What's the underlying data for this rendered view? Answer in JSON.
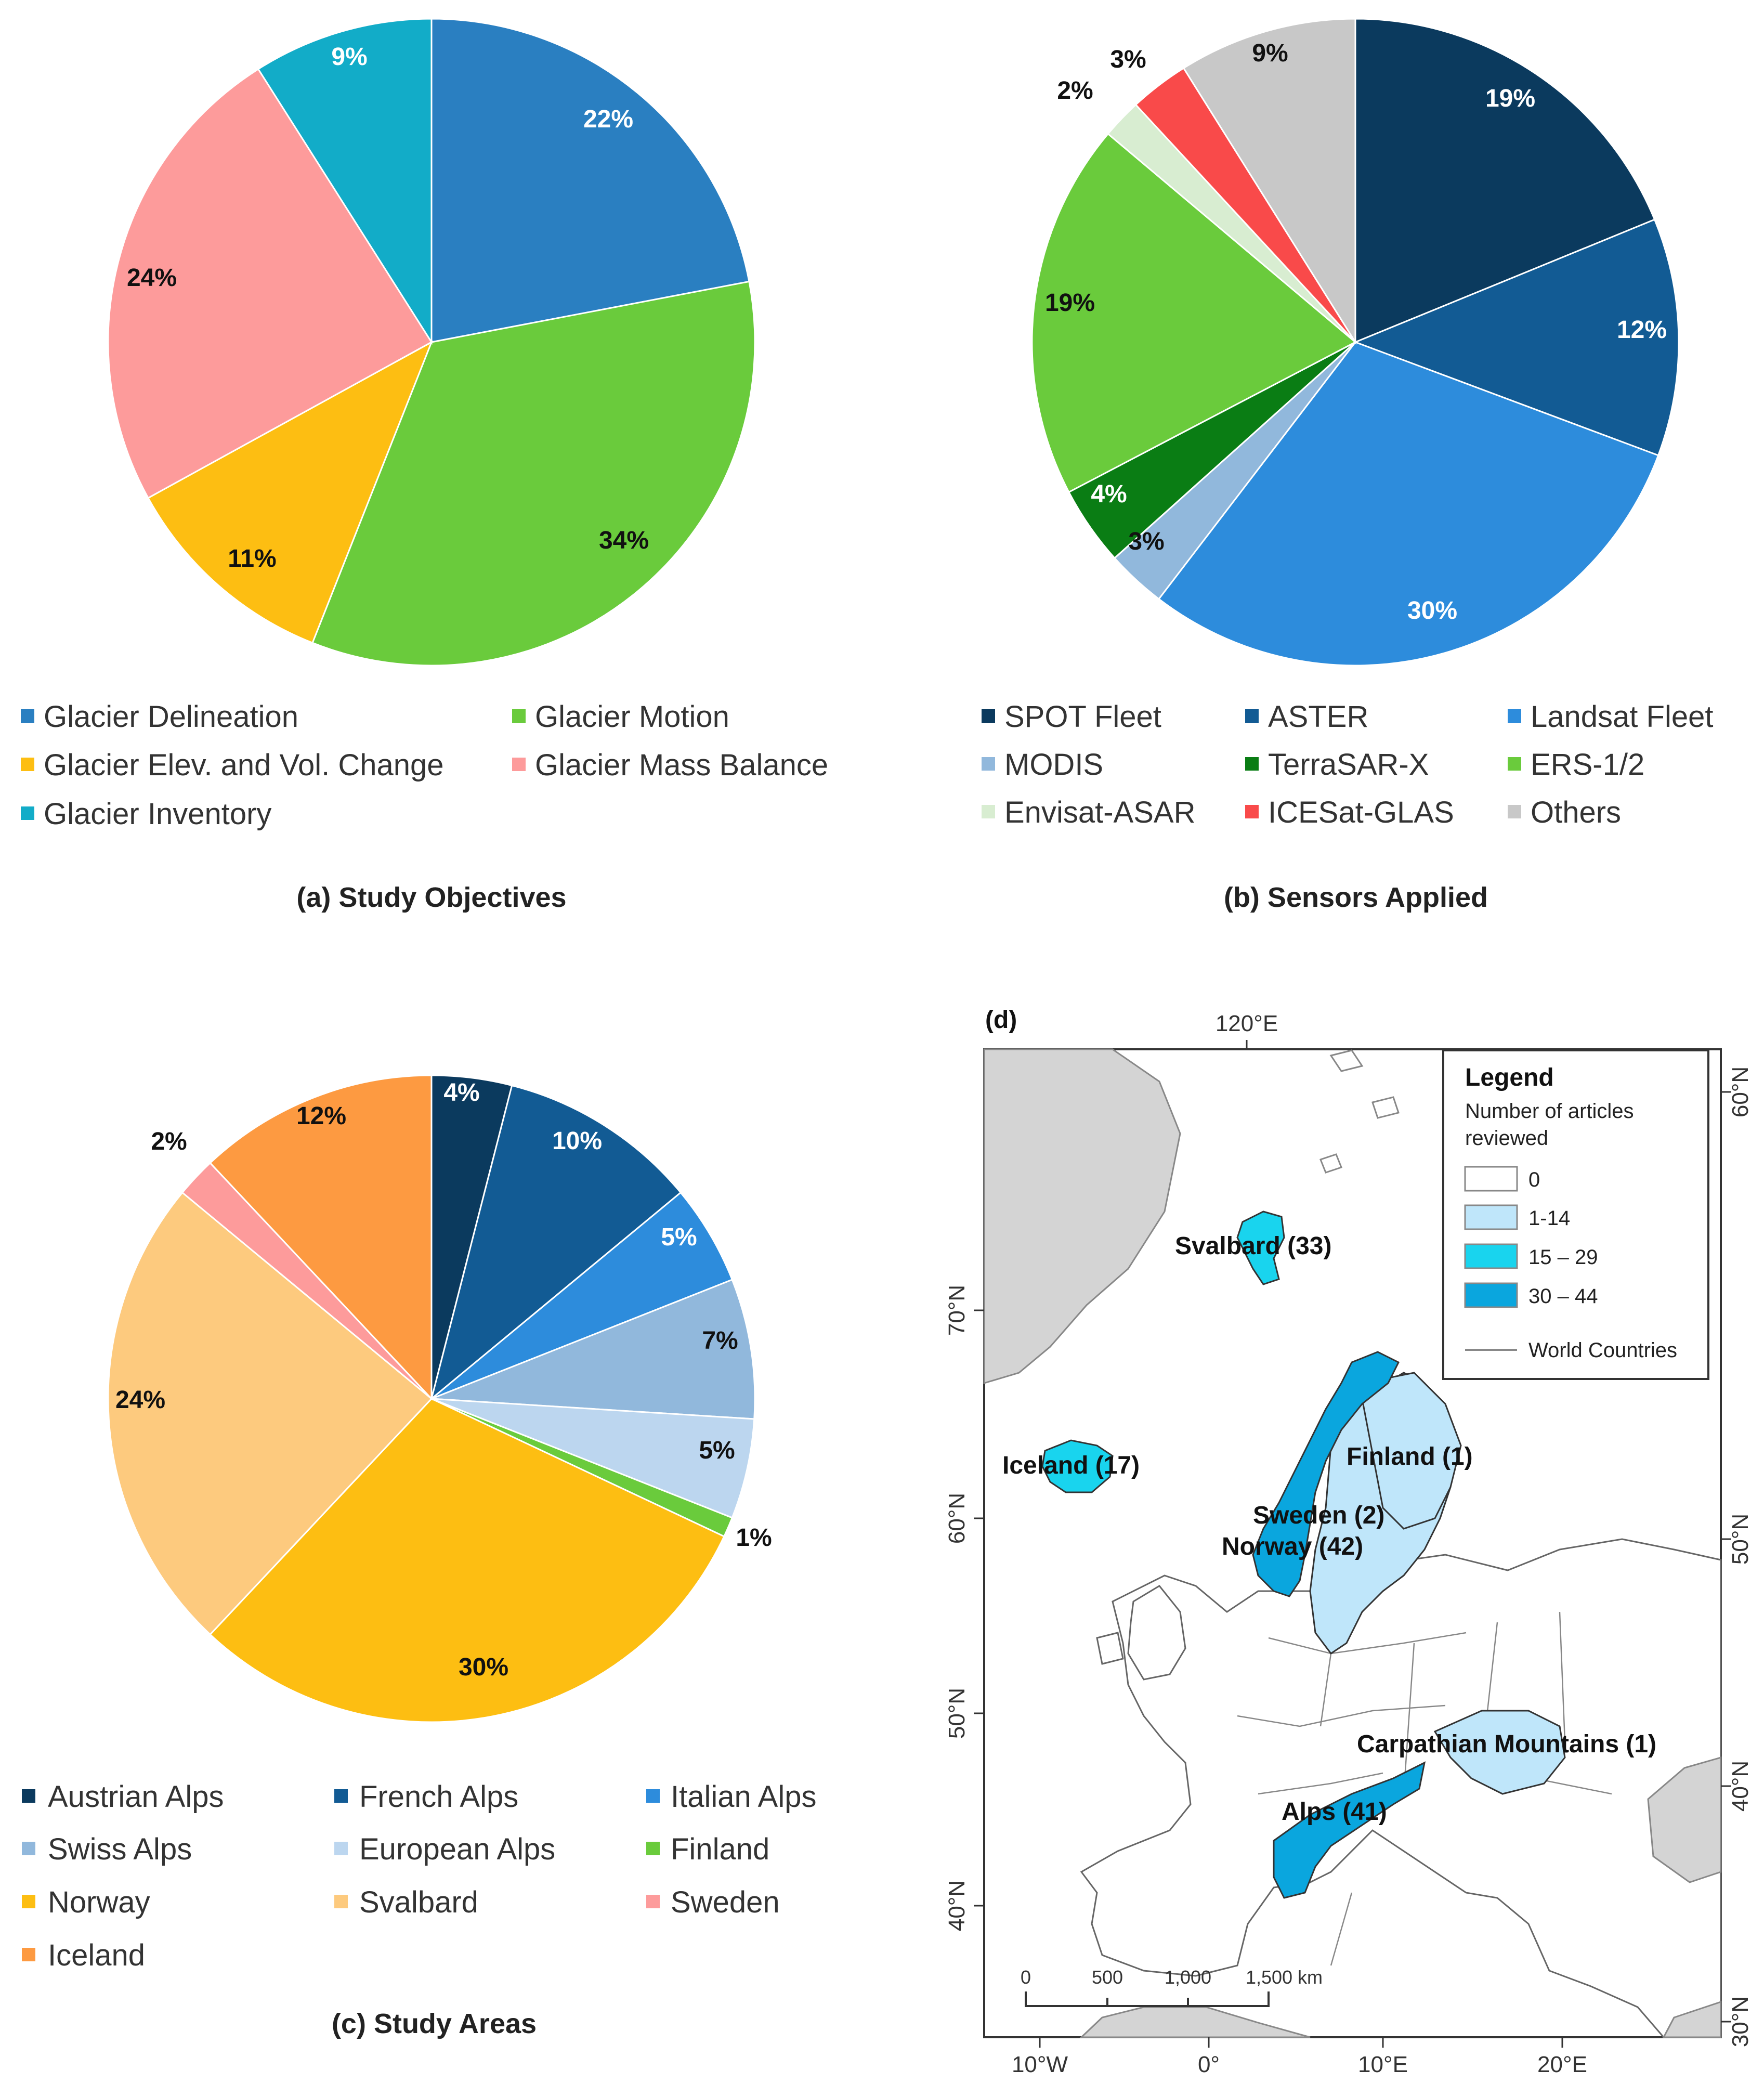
{
  "chart_data": [
    {
      "type": "pie",
      "title": "(a) Study Objectives",
      "categories": [
        "Glacier Delineation",
        "Glacier Motion",
        "Glacier Elev. and Vol. Change",
        "Glacier Mass Balance",
        "Glacier Inventory"
      ],
      "values": [
        22,
        34,
        11,
        24,
        9
      ],
      "labels": [
        "22%",
        "34%",
        "11%",
        "24%",
        "9%"
      ],
      "colors": [
        "#2a7fc1",
        "#6acb3c",
        "#fdbe12",
        "#fd9b9b",
        "#12acc8"
      ],
      "label_colors": [
        "#ffffff",
        "#111111",
        "#111111",
        "#111111",
        "#ffffff"
      ]
    },
    {
      "type": "pie",
      "title": "(b) Sensors Applied",
      "categories": [
        "SPOT Fleet",
        "ASTER",
        "Landsat Fleet",
        "MODIS",
        "TerraSAR-X",
        "ERS-1/2",
        "Envisat-ASAR",
        "ICESat-GLAS",
        "Others"
      ],
      "values": [
        19,
        12,
        30,
        3,
        4,
        19,
        2,
        3,
        9
      ],
      "labels": [
        "19%",
        "12%",
        "30%",
        "3%",
        "4%",
        "19%",
        "2%",
        "3%",
        "9%"
      ],
      "colors": [
        "#0b3a5e",
        "#125b94",
        "#2d8cdc",
        "#91b8dc",
        "#0a7d14",
        "#6acb3c",
        "#d8edd1",
        "#f94a4a",
        "#c8c8c8"
      ],
      "label_colors": [
        "#ffffff",
        "#ffffff",
        "#ffffff",
        "#111111",
        "#ffffff",
        "#111111",
        "#111111",
        "#111111",
        "#111111"
      ]
    },
    {
      "type": "pie",
      "title": "(c) Study Areas",
      "categories": [
        "Austrian Alps",
        "French Alps",
        "Italian Alps",
        "Swiss Alps",
        "European Alps",
        "Finland",
        "Norway",
        "Svalbard",
        "Sweden",
        "Iceland"
      ],
      "values": [
        4,
        10,
        5,
        7,
        5,
        1,
        30,
        24,
        2,
        12
      ],
      "labels": [
        "4%",
        "10%",
        "5%",
        "7%",
        "5%",
        "1%",
        "30%",
        "24%",
        "2%",
        "12%"
      ],
      "colors": [
        "#0b3a5e",
        "#125b94",
        "#2d8cdc",
        "#91b8dc",
        "#bcd6ef",
        "#6acb3c",
        "#fdbe12",
        "#fdca7e",
        "#fd9b9b",
        "#fd9a41"
      ],
      "label_colors": [
        "#ffffff",
        "#ffffff",
        "#ffffff",
        "#111111",
        "#111111",
        "#111111",
        "#111111",
        "#111111",
        "#111111",
        "#111111"
      ]
    }
  ],
  "map": {
    "panel_label": "(d)",
    "top_axis": "120°E",
    "bottom_axis": [
      "10°W",
      "0°",
      "10°E",
      "20°E"
    ],
    "left_axis": [
      "70°N",
      "60°N",
      "50°N",
      "40°N"
    ],
    "right_axis": [
      "60°N",
      "50°N",
      "40°N",
      "30°N"
    ],
    "legend": {
      "title": "Legend",
      "subtitle_line1": "Number of articles",
      "subtitle_line2": "reviewed",
      "classes": [
        {
          "label": "0",
          "color": "#ffffff"
        },
        {
          "label": "1-14",
          "color": "#bfe6fa"
        },
        {
          "label": "15 – 29",
          "color": "#19d4ee"
        },
        {
          "label": "30 – 44",
          "color": "#0aa6de"
        }
      ],
      "line_label": "World Countries"
    },
    "regions": {
      "svalbard": "Svalbard (33)",
      "iceland": "Iceland (17)",
      "finland": "Finland (1)",
      "sweden": "Sweden (2)",
      "norway": "Norway (42)",
      "carpathian": "Carpathian Mountains (1)",
      "alps": "Alps (41)"
    },
    "scale": [
      "0",
      "500",
      "1,000",
      "1,500 km"
    ]
  }
}
